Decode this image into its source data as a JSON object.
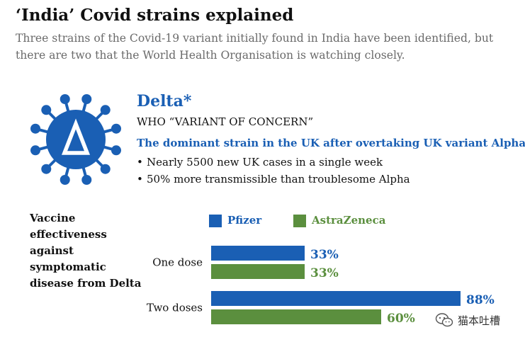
{
  "headline": "‘India’ Covid strains explained",
  "standfirst": "Three strains of the Covid-19 variant initially found in India have been identified, but there are two that the World Health Organisation is watching closely.",
  "variant": {
    "name": "Delta*",
    "status": "WHO “VARIANT OF CONCERN”",
    "summary": "The dominant strain in the UK after overtaking UK variant Alpha",
    "facts": [
      "Nearly 5500 new UK cases in a single week",
      "50% more transmissible than troublesome Alpha"
    ],
    "icon": "virus-delta-icon",
    "icon_color": "#1a5fb4"
  },
  "watermark": {
    "icon": "wechat-icon",
    "text": "猫本吐槽"
  },
  "chart_data": {
    "type": "bar",
    "orientation": "horizontal",
    "title": "Vaccine effectiveness against symptomatic disease from Delta",
    "categories": [
      "One dose",
      "Two doses"
    ],
    "series": [
      {
        "name": "Pfizer",
        "color": "#1a5fb4",
        "values": [
          33,
          88
        ]
      },
      {
        "name": "AstraZeneca",
        "color": "#5b8f3e",
        "values": [
          33,
          60
        ]
      }
    ],
    "unit": "%",
    "xlim": [
      0,
      100
    ],
    "grid": false,
    "legend": "top"
  }
}
